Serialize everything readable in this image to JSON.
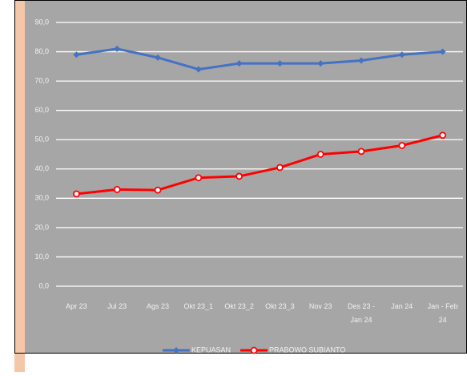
{
  "chart_data": {
    "type": "line",
    "categories": [
      "Apr 23",
      "Jul 23",
      "Ags 23",
      "Okt 23_1",
      "Okt 23_2",
      "Okt 23_3",
      "Nov 23",
      "Des 23 - Jan 24",
      "Jan 24",
      "Jan - Feb 24"
    ],
    "series": [
      {
        "name": "KEPUASAN",
        "color": "#4472c4",
        "values": [
          79,
          81,
          78,
          74,
          76,
          76,
          76,
          77,
          79,
          80
        ]
      },
      {
        "name": "PRABOWO SUBIANTO",
        "color": "#ff0000",
        "values": [
          31.5,
          33,
          32.8,
          37,
          37.5,
          40.5,
          45,
          46,
          48,
          51.5
        ]
      }
    ],
    "ylim": [
      0,
      90
    ],
    "yticks": [
      {
        "value": 0,
        "label": "0,0"
      },
      {
        "value": 10,
        "label": "10,0"
      },
      {
        "value": 20,
        "label": "20,0"
      },
      {
        "value": 30,
        "label": "30,0"
      },
      {
        "value": 40,
        "label": "40,0"
      },
      {
        "value": 50,
        "label": "50,0"
      },
      {
        "value": 60,
        "label": "60,0"
      },
      {
        "value": 70,
        "label": "70,0"
      },
      {
        "value": 80,
        "label": "80,0"
      },
      {
        "value": 90,
        "label": "90,0"
      }
    ],
    "grid": true
  }
}
